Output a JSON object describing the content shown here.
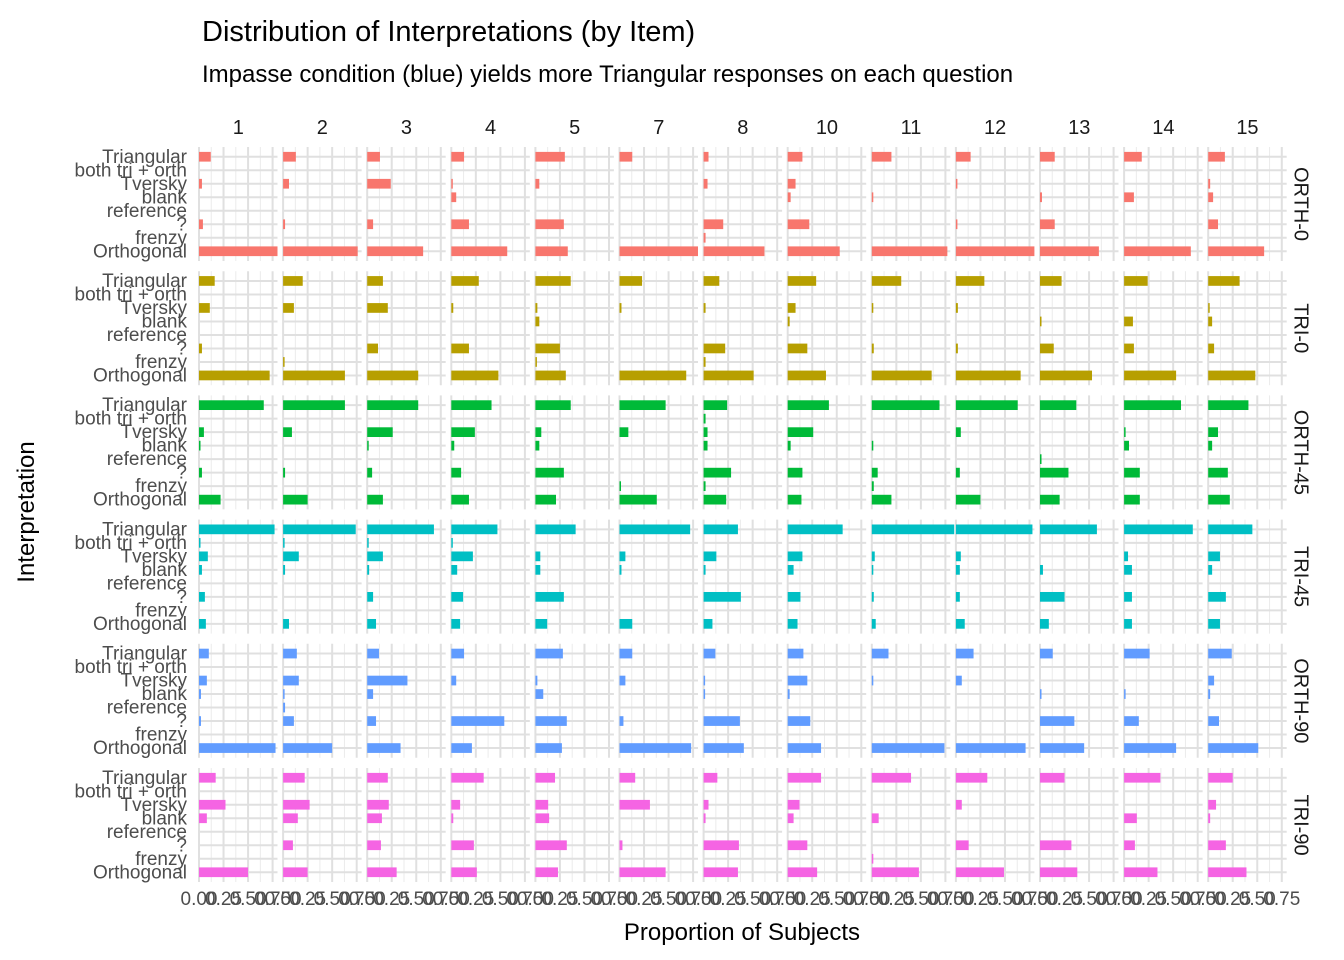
{
  "chart_data": {
    "type": "bar",
    "orientation": "horizontal",
    "title": "Distribution of Interpretations (by Item)",
    "subtitle": "Impasse condition (blue) yields more Triangular responses on each question",
    "xlabel": "Proportion of Subjects",
    "ylabel": "Interpretation",
    "xlim": [
      0,
      0.8
    ],
    "x_ticks": [
      "0.00",
      "0.25",
      "0.50",
      "0.75"
    ],
    "grid": true,
    "legend": "none",
    "categories": [
      "Triangular",
      "both tri + orth",
      "Tversky",
      "blank",
      "reference",
      "?",
      "frenzy",
      "Orthogonal"
    ],
    "columns": [
      "1",
      "2",
      "3",
      "4",
      "5",
      "7",
      "8",
      "10",
      "11",
      "12",
      "13",
      "14",
      "15"
    ],
    "rows": [
      {
        "name": "ORTH-0",
        "color": "#F8766D",
        "values": [
          [
            0.12,
            0,
            0.03,
            0,
            0,
            0.04,
            0,
            0.8
          ],
          [
            0.13,
            0,
            0.06,
            0,
            0,
            0.02,
            0,
            0.76
          ],
          [
            0.13,
            0,
            0.24,
            0,
            0,
            0.06,
            0,
            0.57
          ],
          [
            0.13,
            0,
            0.01,
            0.05,
            0,
            0.18,
            0,
            0.57
          ],
          [
            0.3,
            0,
            0.04,
            0,
            0,
            0.29,
            0,
            0.33
          ],
          [
            0.13,
            0,
            0,
            0,
            0,
            0,
            0,
            0.8
          ],
          [
            0.05,
            0,
            0.04,
            0,
            0,
            0.2,
            0.02,
            0.62
          ],
          [
            0.15,
            0,
            0.08,
            0.03,
            0,
            0.22,
            0,
            0.53
          ],
          [
            0.2,
            0,
            0,
            0.01,
            0,
            0,
            0,
            0.77
          ],
          [
            0.15,
            0,
            0.01,
            0,
            0,
            0.01,
            0,
            0.8
          ],
          [
            0.15,
            0,
            0,
            0.02,
            0,
            0.15,
            0,
            0.6
          ],
          [
            0.18,
            0,
            0,
            0.1,
            0,
            0,
            0,
            0.68
          ],
          [
            0.17,
            0,
            0.02,
            0.05,
            0,
            0.1,
            0,
            0.57
          ]
        ]
      },
      {
        "name": "TRI-0",
        "color": "#B79F00",
        "values": [
          [
            0.16,
            0,
            0.11,
            0,
            0,
            0.03,
            0,
            0.72
          ],
          [
            0.2,
            0,
            0.11,
            0,
            0,
            0,
            0.01,
            0.63
          ],
          [
            0.16,
            0,
            0.21,
            0,
            0,
            0.11,
            0,
            0.52
          ],
          [
            0.28,
            0,
            0.02,
            0,
            0,
            0.18,
            0,
            0.48
          ],
          [
            0.36,
            0,
            0.02,
            0.04,
            0,
            0.25,
            0.01,
            0.31
          ],
          [
            0.23,
            0,
            0.02,
            0,
            0,
            0,
            0,
            0.68
          ],
          [
            0.16,
            0,
            0.02,
            0,
            0,
            0.22,
            0.02,
            0.51
          ],
          [
            0.29,
            0,
            0.08,
            0.02,
            0,
            0.2,
            0,
            0.39
          ],
          [
            0.3,
            0,
            0.01,
            0,
            0,
            0.02,
            0,
            0.61
          ],
          [
            0.29,
            0,
            0.02,
            0,
            0,
            0.02,
            0,
            0.66
          ],
          [
            0.22,
            0,
            0,
            0.01,
            0,
            0.14,
            0,
            0.53
          ],
          [
            0.24,
            0,
            0,
            0.09,
            0,
            0.1,
            0,
            0.53
          ],
          [
            0.32,
            0,
            0.01,
            0.04,
            0,
            0.06,
            0,
            0.48
          ]
        ]
      },
      {
        "name": "ORTH-45",
        "color": "#00BA38",
        "values": [
          [
            0.66,
            0,
            0.05,
            0.01,
            0,
            0.03,
            0,
            0.22
          ],
          [
            0.63,
            0,
            0.09,
            0,
            0,
            0.02,
            0,
            0.25
          ],
          [
            0.52,
            0,
            0.26,
            0.01,
            0,
            0.05,
            0,
            0.16
          ],
          [
            0.41,
            0,
            0.24,
            0.03,
            0,
            0.1,
            0,
            0.18
          ],
          [
            0.36,
            0,
            0.06,
            0.04,
            0,
            0.29,
            0,
            0.21
          ],
          [
            0.47,
            0,
            0.09,
            0,
            0,
            0,
            0.01,
            0.38
          ],
          [
            0.24,
            0.02,
            0.04,
            0.04,
            0,
            0.28,
            0.02,
            0.23
          ],
          [
            0.42,
            0,
            0.26,
            0.03,
            0,
            0.15,
            0,
            0.14
          ],
          [
            0.69,
            0,
            0,
            0.01,
            0,
            0.06,
            0.02,
            0.2
          ],
          [
            0.63,
            0,
            0.05,
            0,
            0,
            0.04,
            0,
            0.25
          ],
          [
            0.37,
            0,
            0,
            0,
            0.01,
            0.29,
            0,
            0.2
          ],
          [
            0.58,
            0,
            0.01,
            0.05,
            0,
            0.16,
            0,
            0.16
          ],
          [
            0.41,
            0,
            0.1,
            0.04,
            0,
            0.2,
            0,
            0.22
          ]
        ]
      },
      {
        "name": "TRI-45",
        "color": "#00BFC4",
        "values": [
          [
            0.77,
            0.01,
            0.09,
            0.03,
            0,
            0.06,
            0,
            0.07
          ],
          [
            0.74,
            0.01,
            0.16,
            0.02,
            0,
            0,
            0,
            0.06
          ],
          [
            0.68,
            0.01,
            0.16,
            0.02,
            0,
            0.06,
            0,
            0.09
          ],
          [
            0.47,
            0.01,
            0.22,
            0.06,
            0,
            0.12,
            0,
            0.09
          ],
          [
            0.41,
            0,
            0.05,
            0.05,
            0,
            0.29,
            0,
            0.12
          ],
          [
            0.72,
            0,
            0.06,
            0.02,
            0,
            0,
            0,
            0.13
          ],
          [
            0.35,
            0,
            0.13,
            0.02,
            0,
            0.38,
            0,
            0.09
          ],
          [
            0.56,
            0,
            0.15,
            0.06,
            0,
            0.13,
            0,
            0.1
          ],
          [
            0.84,
            0,
            0.03,
            0.01,
            0,
            0.02,
            0,
            0.04
          ],
          [
            0.78,
            0,
            0.05,
            0.04,
            0,
            0.04,
            0,
            0.09
          ],
          [
            0.58,
            0,
            0,
            0.03,
            0,
            0.25,
            0,
            0.09
          ],
          [
            0.7,
            0,
            0.04,
            0.08,
            0,
            0.08,
            0,
            0.08
          ],
          [
            0.45,
            0,
            0.12,
            0.04,
            0,
            0.18,
            0,
            0.12
          ]
        ]
      },
      {
        "name": "ORTH-90",
        "color": "#619CFF",
        "values": [
          [
            0.1,
            0,
            0.08,
            0.02,
            0,
            0.02,
            0,
            0.78
          ],
          [
            0.14,
            0,
            0.16,
            0.01,
            0.02,
            0.11,
            0,
            0.5
          ],
          [
            0.12,
            0,
            0.41,
            0.06,
            0,
            0.09,
            0,
            0.34
          ],
          [
            0.13,
            0,
            0.05,
            0,
            0,
            0.54,
            0,
            0.21
          ],
          [
            0.28,
            0,
            0.02,
            0.08,
            0,
            0.32,
            0,
            0.27
          ],
          [
            0.13,
            0,
            0.06,
            0,
            0,
            0.04,
            0,
            0.73
          ],
          [
            0.12,
            0,
            0.01,
            0.01,
            0,
            0.37,
            0,
            0.41
          ],
          [
            0.16,
            0,
            0.2,
            0.02,
            0,
            0.23,
            0,
            0.34
          ],
          [
            0.17,
            0,
            0.01,
            0,
            0,
            0,
            0,
            0.74
          ],
          [
            0.18,
            0,
            0.06,
            0,
            0,
            0,
            0,
            0.71
          ],
          [
            0.13,
            0,
            0,
            0.01,
            0,
            0.35,
            0,
            0.45
          ],
          [
            0.26,
            0,
            0,
            0.01,
            0,
            0.15,
            0,
            0.53
          ],
          [
            0.24,
            0,
            0.06,
            0.02,
            0,
            0.11,
            0,
            0.51
          ]
        ]
      },
      {
        "name": "TRI-90",
        "color": "#F564E3",
        "values": [
          [
            0.17,
            0,
            0.27,
            0.08,
            0,
            0,
            0,
            0.5
          ],
          [
            0.22,
            0,
            0.27,
            0.15,
            0,
            0.1,
            0,
            0.25
          ],
          [
            0.21,
            0,
            0.22,
            0.15,
            0,
            0.14,
            0,
            0.3
          ],
          [
            0.33,
            0,
            0.09,
            0.02,
            0,
            0.23,
            0,
            0.26
          ],
          [
            0.2,
            0,
            0.13,
            0.14,
            0,
            0.32,
            0,
            0.23
          ],
          [
            0.16,
            0,
            0.31,
            0,
            0,
            0.03,
            0,
            0.47
          ],
          [
            0.14,
            0,
            0.05,
            0.02,
            0,
            0.36,
            0,
            0.35
          ],
          [
            0.34,
            0,
            0.12,
            0.06,
            0,
            0.2,
            0,
            0.3
          ],
          [
            0.4,
            0,
            0,
            0.07,
            0,
            0,
            0.01,
            0.48
          ],
          [
            0.32,
            0,
            0.06,
            0,
            0,
            0.13,
            0,
            0.49
          ],
          [
            0.25,
            0,
            0,
            0,
            0,
            0.32,
            0,
            0.38
          ],
          [
            0.37,
            0,
            0,
            0.13,
            0,
            0.11,
            0,
            0.34
          ],
          [
            0.25,
            0,
            0.08,
            0.02,
            0,
            0.18,
            0,
            0.39
          ]
        ]
      }
    ]
  }
}
